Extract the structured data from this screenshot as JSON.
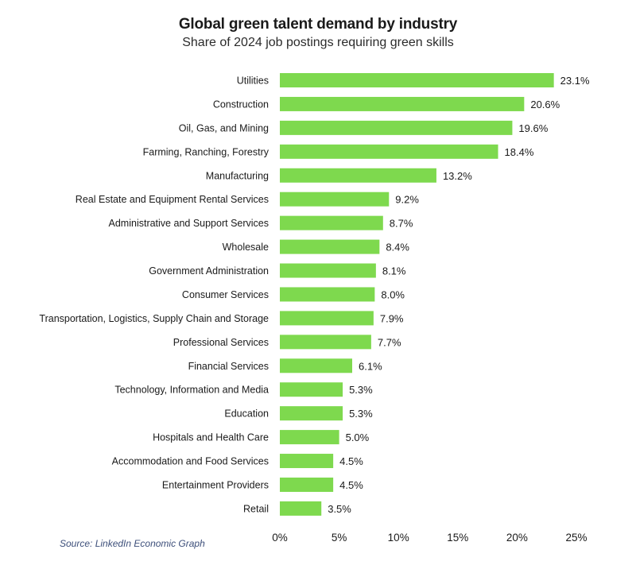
{
  "chart_data": {
    "type": "bar",
    "orientation": "horizontal",
    "title": "Global green talent demand by industry",
    "subtitle": "Share of 2024 job postings requiring green skills",
    "categories": [
      "Utilities",
      "Construction",
      "Oil, Gas, and Mining",
      "Farming, Ranching, Forestry",
      "Manufacturing",
      "Real Estate and Equipment Rental Services",
      "Administrative and Support Services",
      "Wholesale",
      "Government Administration",
      "Consumer Services",
      "Transportation, Logistics, Supply Chain and Storage",
      "Professional Services",
      "Financial Services",
      "Technology, Information and Media",
      "Education",
      "Hospitals and Health Care",
      "Accommodation and Food Services",
      "Entertainment Providers",
      "Retail"
    ],
    "values": [
      23.1,
      20.6,
      19.6,
      18.4,
      13.2,
      9.2,
      8.7,
      8.4,
      8.1,
      8.0,
      7.9,
      7.7,
      6.1,
      5.3,
      5.3,
      5.0,
      4.5,
      4.5,
      3.5
    ],
    "value_labels": [
      "23.1%",
      "20.6%",
      "19.6%",
      "18.4%",
      "13.2%",
      "9.2%",
      "8.7%",
      "8.4%",
      "8.1%",
      "8.0%",
      "7.9%",
      "7.7%",
      "6.1%",
      "5.3%",
      "5.3%",
      "5.0%",
      "4.5%",
      "4.5%",
      "3.5%"
    ],
    "xlim": [
      0,
      25
    ],
    "xticks": [
      0,
      5,
      10,
      15,
      20,
      25
    ],
    "xtick_labels": [
      "0%",
      "5%",
      "10%",
      "15%",
      "20%",
      "25%"
    ],
    "grid": false,
    "legend": "none",
    "bar_color": "#7ed94e"
  },
  "source": "Source: LinkedIn Economic Graph"
}
